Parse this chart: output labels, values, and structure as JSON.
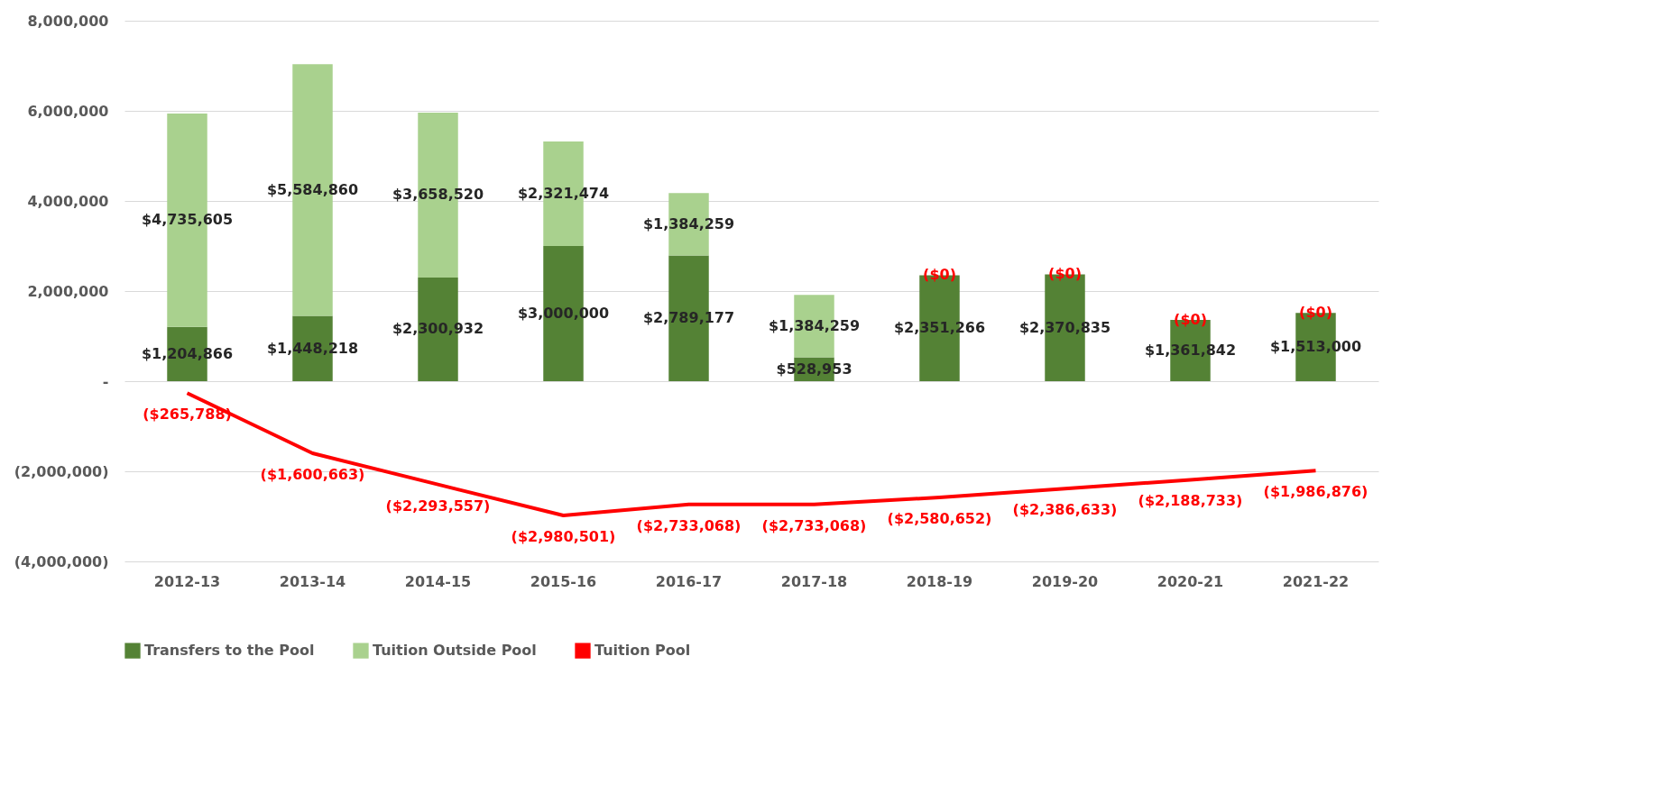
{
  "chart_data": {
    "type": "bar",
    "stacked": true,
    "categories": [
      "2012-13",
      "2013-14",
      "2014-15",
      "2015-16",
      "2016-17",
      "2017-18",
      "2018-19",
      "2019-20",
      "2020-21",
      "2021-22"
    ],
    "series": [
      {
        "name": "Transfers to the Pool",
        "color": "#548235",
        "values": [
          1204866,
          1448218,
          2300932,
          3000000,
          2789177,
          528953,
          2351266,
          2370835,
          1361842,
          1513000
        ],
        "value_labels": [
          "$1,204,866",
          "$1,448,218",
          "$2,300,932",
          "$3,000,000",
          "$2,789,177",
          "$528,953",
          "$2,351,266",
          "$2,370,835",
          "$1,361,842",
          "$1,513,000"
        ]
      },
      {
        "name": "Tuition Outside Pool",
        "color": "#a9d18e",
        "values": [
          4735605,
          5584860,
          3658520,
          2321474,
          1384259,
          1384259,
          0,
          0,
          0,
          0
        ],
        "value_labels": [
          "$4,735,605",
          "$5,584,860",
          "$3,658,520",
          "$2,321,474",
          "$1,384,259",
          "$1,384,259",
          "($0)",
          "($0)",
          "($0)",
          "($0)"
        ]
      },
      {
        "name": "Tuition Pool",
        "type": "line",
        "color": "#ff0000",
        "values": [
          -265788,
          -1600663,
          -2293557,
          -2980501,
          -2733068,
          -2733068,
          -2580652,
          -2386633,
          -2188733,
          -1986876
        ],
        "value_labels": [
          "($265,788)",
          "($1,600,663)",
          "($2,293,557)",
          "($2,980,501)",
          "($2,733,068)",
          "($2,733,068)",
          "($2,580,652)",
          "($2,386,633)",
          "($2,188,733)",
          "($1,986,876)"
        ]
      }
    ],
    "ylim": [
      -4000000,
      8000000
    ],
    "yticks": [
      {
        "value": -4000000,
        "label": "(4,000,000)"
      },
      {
        "value": -2000000,
        "label": "(2,000,000)"
      },
      {
        "value": 0,
        "label": "-"
      },
      {
        "value": 2000000,
        "label": "2,000,000"
      },
      {
        "value": 4000000,
        "label": "4,000,000"
      },
      {
        "value": 6000000,
        "label": "6,000,000"
      },
      {
        "value": 8000000,
        "label": "8,000,000"
      }
    ],
    "grid": "y",
    "legend": "bottom",
    "line_style": "solid",
    "marker": "none"
  }
}
